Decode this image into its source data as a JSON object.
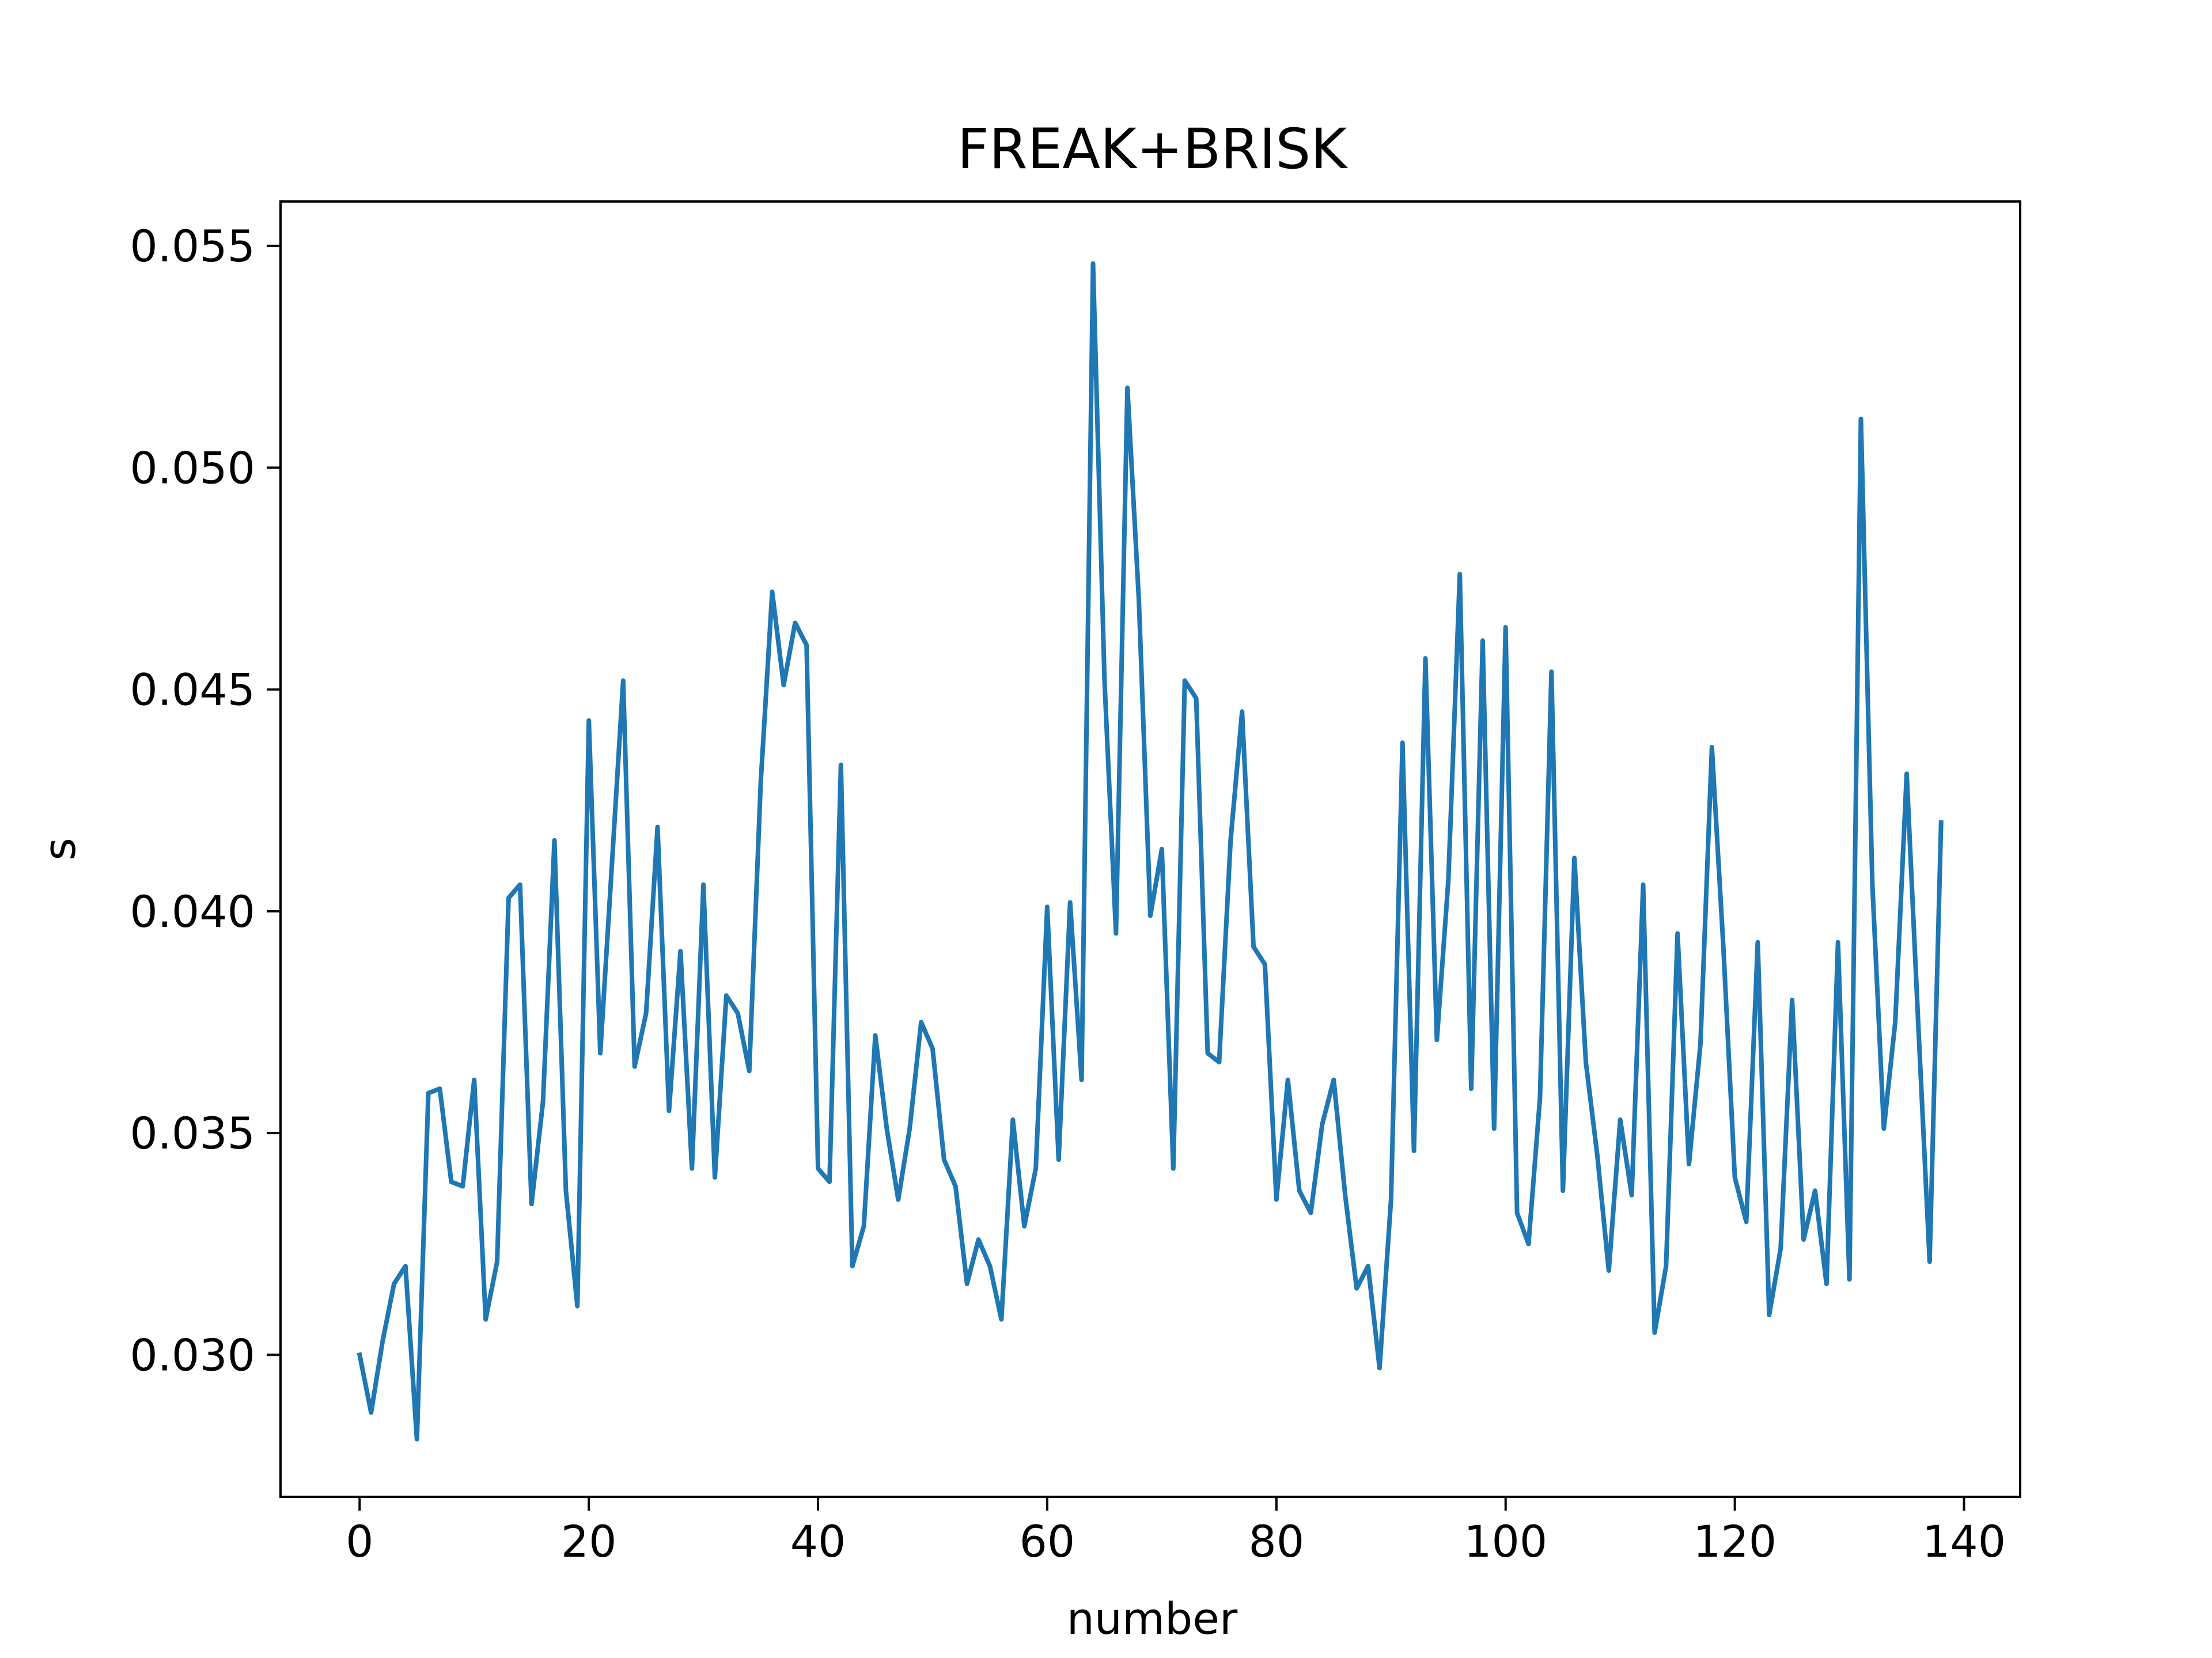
{
  "chart_data": {
    "type": "line",
    "title": "FREAK+BRISK",
    "xlabel": "number",
    "ylabel": "s",
    "xlim": [
      -6.9,
      144.9
    ],
    "ylim": [
      0.0268,
      0.056
    ],
    "xticks": [
      0,
      20,
      40,
      60,
      80,
      100,
      120,
      140
    ],
    "yticks": [
      0.03,
      0.035,
      0.04,
      0.045,
      0.05,
      0.055
    ],
    "ytick_labels": [
      "0.030",
      "0.035",
      "0.040",
      "0.045",
      "0.050",
      "0.055"
    ],
    "grid": false,
    "color": "#1f77b4",
    "series": [
      {
        "values": [
          0.03,
          0.0287,
          0.0303,
          0.0316,
          0.032,
          0.0281,
          0.0359,
          0.036,
          0.0339,
          0.0338,
          0.0362,
          0.0308,
          0.0321,
          0.0403,
          0.0406,
          0.0334,
          0.0357,
          0.0416,
          0.0337,
          0.0311,
          0.0443,
          0.0368,
          0.041,
          0.0452,
          0.0365,
          0.0377,
          0.0419,
          0.0355,
          0.0391,
          0.0342,
          0.0406,
          0.034,
          0.0381,
          0.0377,
          0.0364,
          0.0429,
          0.0472,
          0.0451,
          0.0465,
          0.046,
          0.0342,
          0.0339,
          0.0433,
          0.032,
          0.0329,
          0.0372,
          0.0351,
          0.0335,
          0.0351,
          0.0375,
          0.0369,
          0.0344,
          0.0338,
          0.0316,
          0.0326,
          0.032,
          0.0308,
          0.0353,
          0.0329,
          0.0342,
          0.0401,
          0.0344,
          0.0402,
          0.0362,
          0.0546,
          0.0452,
          0.0395,
          0.0518,
          0.047,
          0.0399,
          0.0414,
          0.0342,
          0.0452,
          0.0448,
          0.0368,
          0.0366,
          0.0416,
          0.0445,
          0.0392,
          0.0388,
          0.0335,
          0.0362,
          0.0337,
          0.0332,
          0.0352,
          0.0362,
          0.0336,
          0.0315,
          0.032,
          0.0297,
          0.0335,
          0.0438,
          0.0346,
          0.0457,
          0.0371,
          0.0407,
          0.0476,
          0.036,
          0.0461,
          0.0351,
          0.0464,
          0.0332,
          0.0325,
          0.0358,
          0.0454,
          0.0337,
          0.0412,
          0.0366,
          0.0345,
          0.0319,
          0.0353,
          0.0336,
          0.0406,
          0.0305,
          0.032,
          0.0395,
          0.0343,
          0.037,
          0.0437,
          0.0392,
          0.034,
          0.033,
          0.0393,
          0.0309,
          0.0324,
          0.038,
          0.0326,
          0.0337,
          0.0316,
          0.0393,
          0.0317,
          0.0511,
          0.0406,
          0.0351,
          0.0375,
          0.0431,
          0.0375,
          0.0321,
          0.042
        ]
      }
    ]
  }
}
